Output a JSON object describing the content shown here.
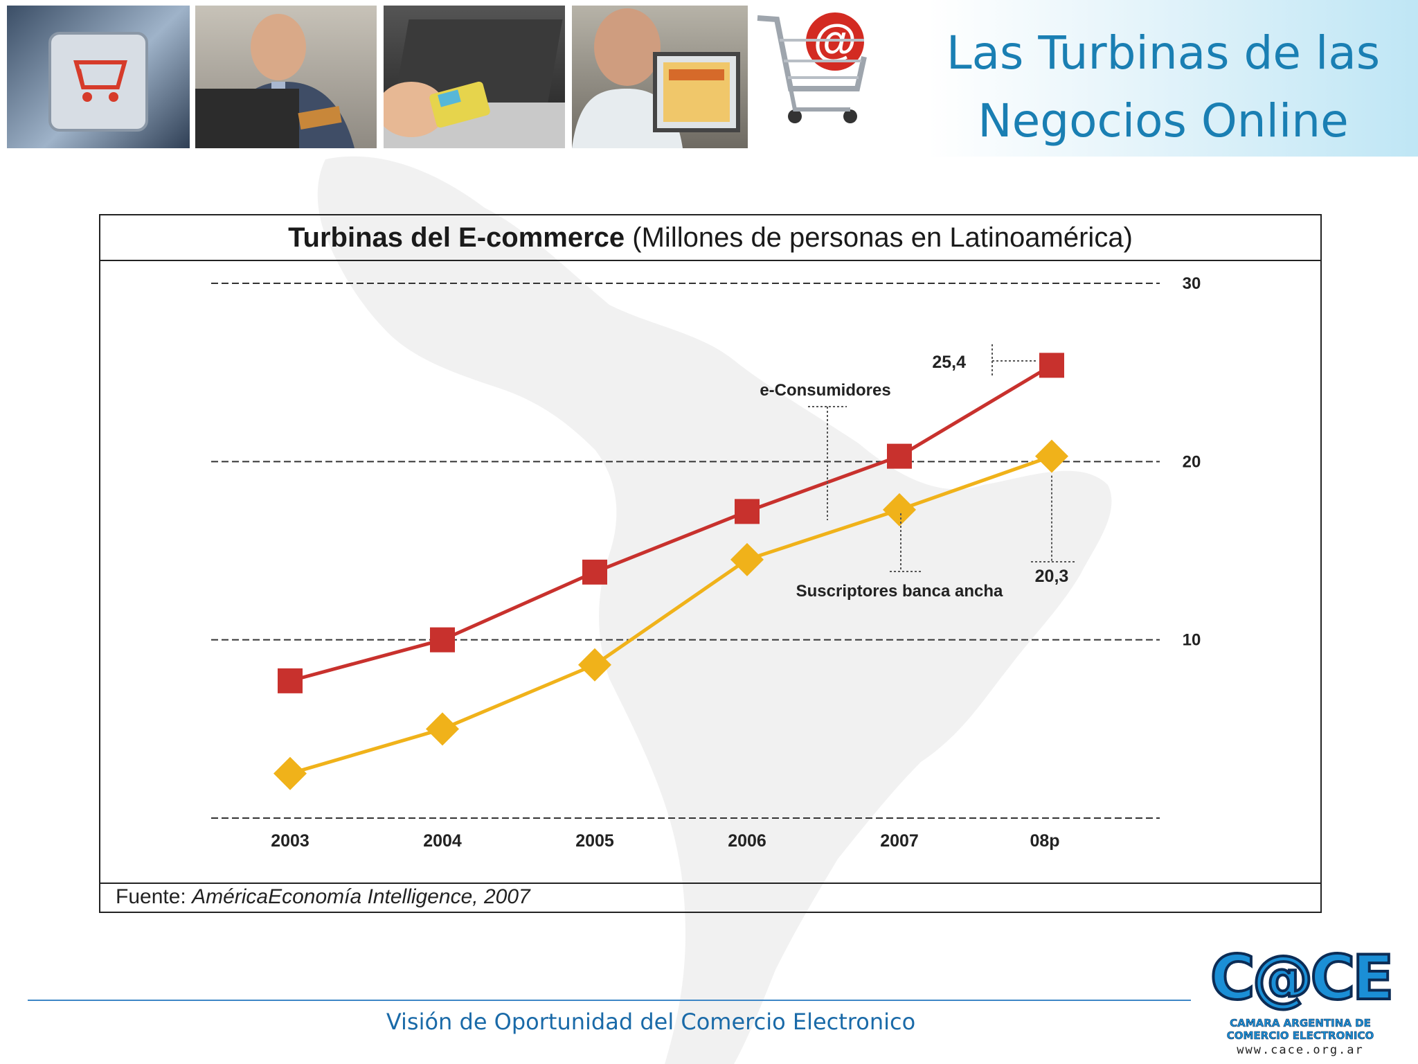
{
  "slide": {
    "title_line1": "Las Turbinas de las",
    "title_line2": "Negocios Online",
    "footer": "Visión de Oportunidad del Comercio Electronico"
  },
  "chart": {
    "title_bold": "Turbinas del E-commerce",
    "title_rest": " (Millones de personas en Latinoamérica)",
    "source_label": "Fuente: ",
    "source_text": "AméricaEconomía Intelligence, 2007"
  },
  "chart_data": {
    "type": "line",
    "title": "Turbinas del E-commerce (Millones de personas en Latinoamérica)",
    "categories": [
      "2003",
      "2004",
      "2005",
      "2006",
      "2007",
      "08p"
    ],
    "ylim": [
      0,
      30
    ],
    "yticks": [
      "10",
      "20",
      "30"
    ],
    "grid": true,
    "series": [
      {
        "name": "e-Consumidores",
        "color": "#c8312d",
        "marker": "square",
        "values": [
          7.7,
          10.0,
          13.8,
          17.2,
          20.3,
          25.4
        ]
      },
      {
        "name": "Suscriptores banca ancha",
        "color": "#f0b21a",
        "marker": "diamond",
        "values": [
          2.5,
          5.0,
          8.6,
          14.5,
          17.3,
          20.3
        ]
      }
    ],
    "annotations": [
      {
        "text": "25,4",
        "series": 0,
        "index": 5
      },
      {
        "text": "20,3",
        "series": 1,
        "index": 5
      }
    ]
  },
  "logo": {
    "name": "C@CE",
    "sub1": "CAMARA ARGENTINA DE",
    "sub2": "COMERCIO ELECTRONICO",
    "url": "www.cace.org.ar"
  },
  "icons": [
    "cart-key-photo",
    "businessman-card-photo",
    "laptop-card-photo",
    "man-laptop-photo",
    "cart-at-icon"
  ]
}
